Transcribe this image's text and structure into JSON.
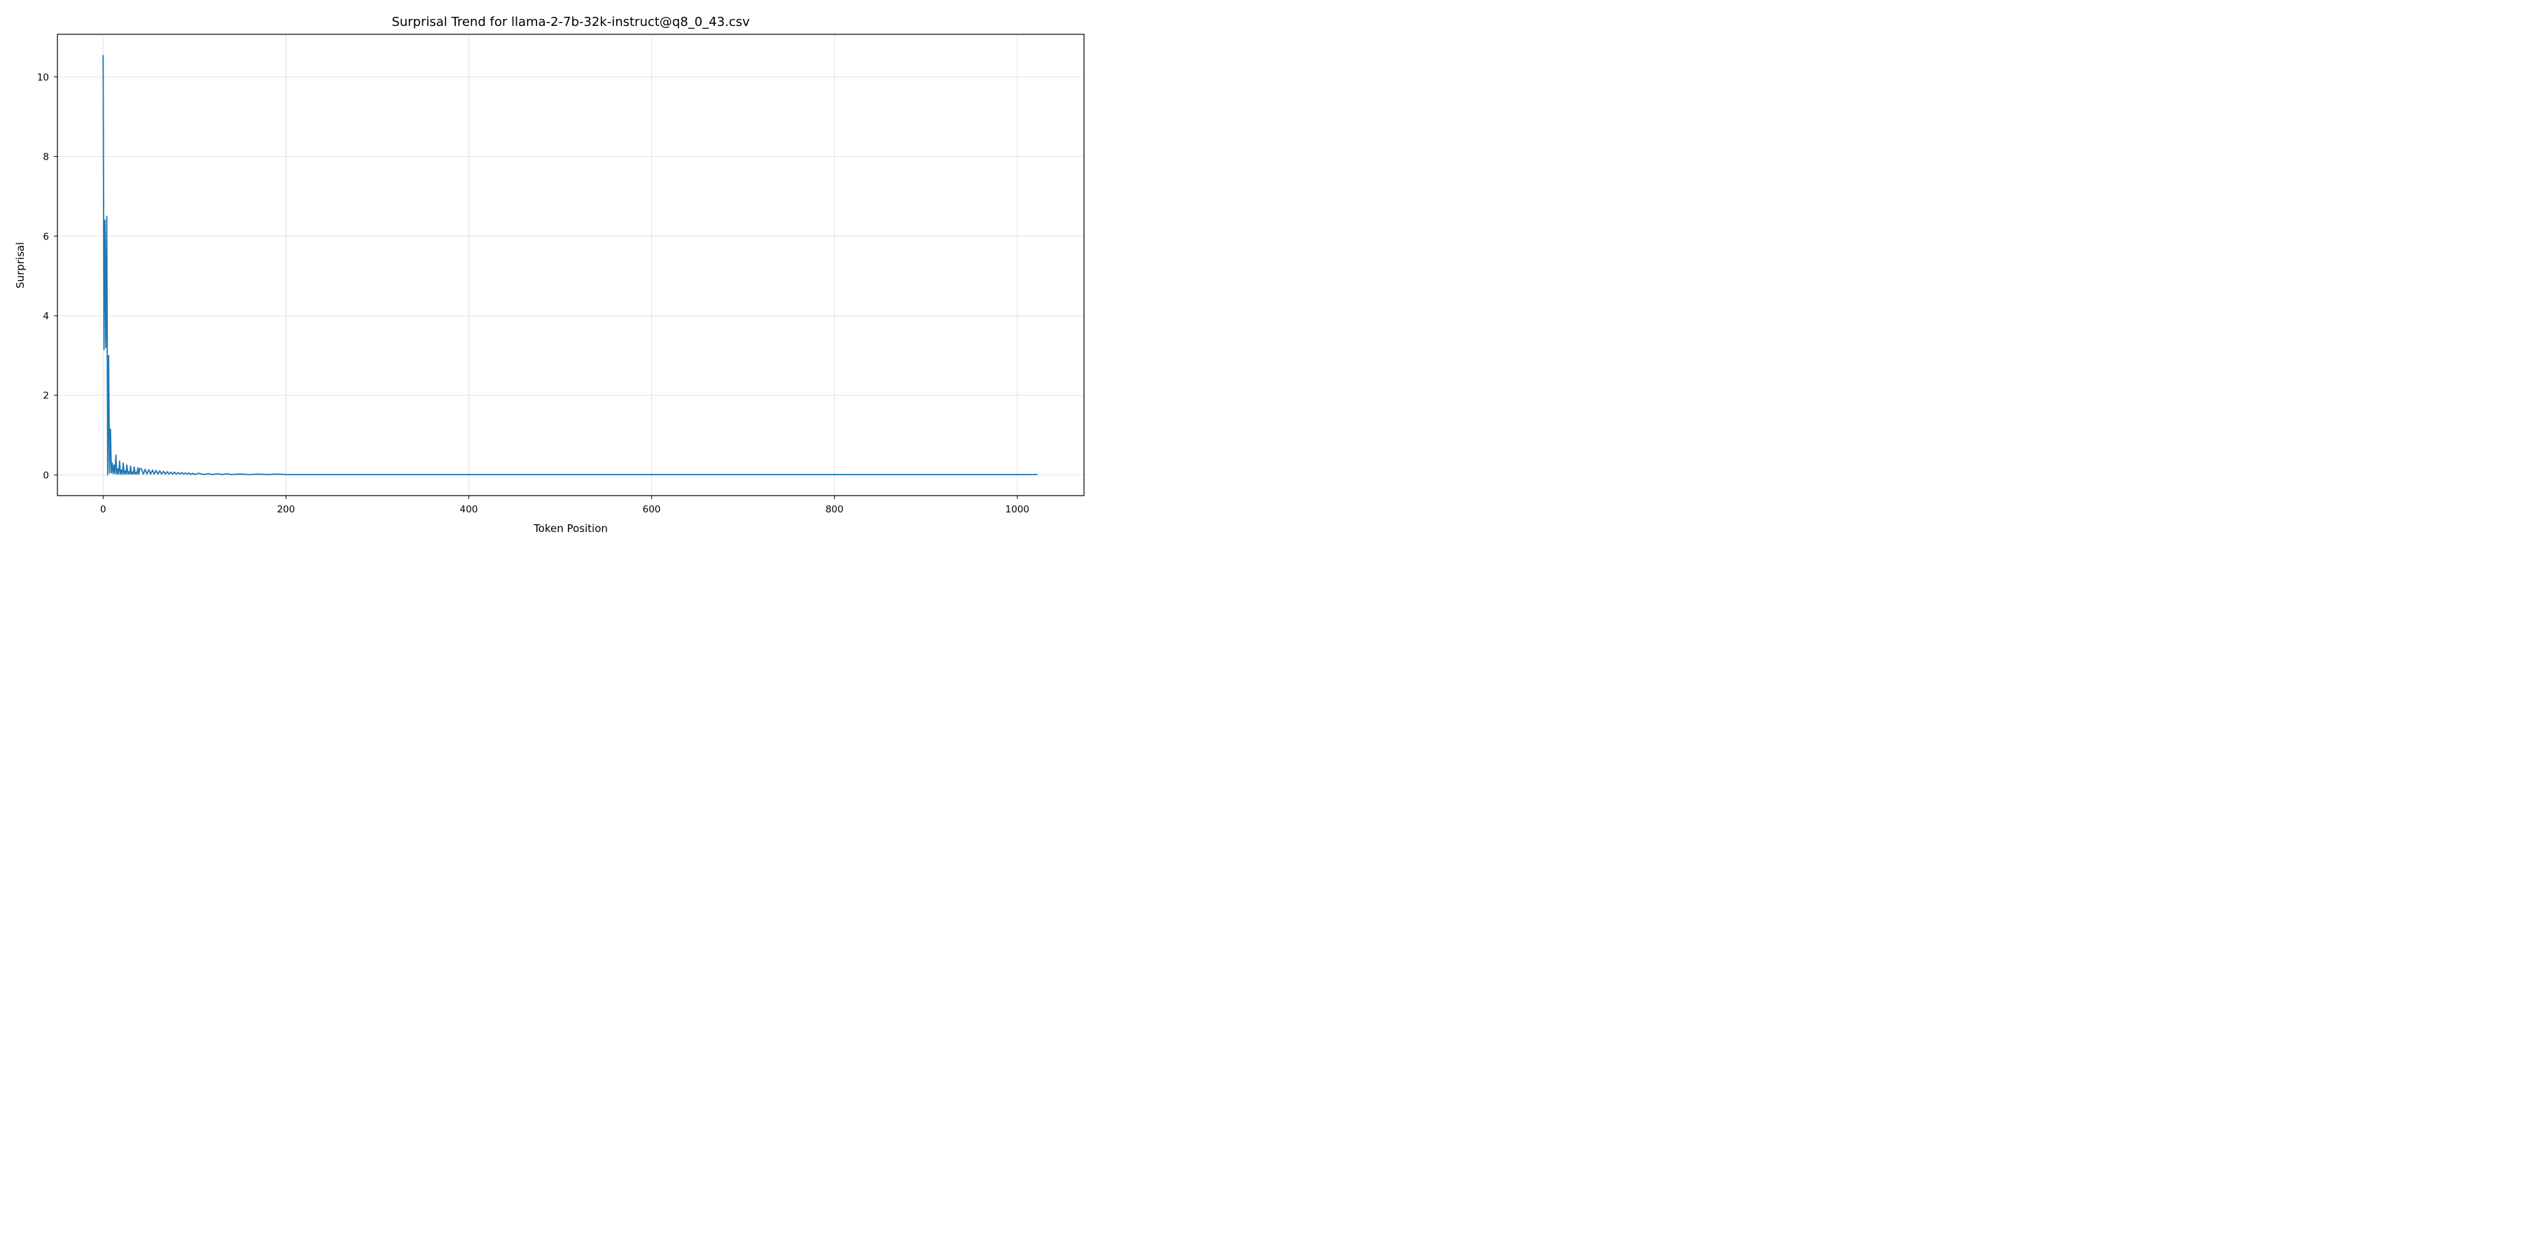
{
  "chart_data": {
    "type": "line",
    "title": "Surprisal Trend for llama-2-7b-32k-instruct@q8_0_43.csv",
    "xlabel": "Token Position",
    "ylabel": "Surprisal",
    "xlim": [
      -50,
      1073
    ],
    "ylim": [
      -0.52,
      11.07
    ],
    "xticks": [
      0,
      200,
      400,
      600,
      800,
      1000
    ],
    "yticks": [
      0,
      2,
      4,
      6,
      8,
      10
    ],
    "grid": true,
    "series_color": "#1f77b4",
    "series": [
      {
        "x": [
          0,
          1,
          2,
          3,
          4,
          5,
          6,
          7,
          8,
          9,
          10,
          11,
          12,
          13,
          14,
          15,
          16,
          17,
          18,
          19,
          20,
          21,
          22,
          23,
          24,
          25,
          26,
          27,
          28,
          29,
          30,
          31,
          32,
          33,
          34,
          35,
          36,
          37,
          38,
          39,
          40,
          42,
          44,
          46,
          48,
          50,
          52,
          54,
          56,
          58,
          60,
          62,
          64,
          66,
          68,
          70,
          72,
          74,
          76,
          78,
          80,
          82,
          84,
          86,
          88,
          90,
          92,
          94,
          96,
          98,
          100,
          105,
          110,
          115,
          120,
          125,
          130,
          135,
          140,
          150,
          160,
          170,
          180,
          190,
          200,
          250,
          300,
          400,
          500,
          600,
          700,
          800,
          900,
          1000,
          1022
        ],
        "values": [
          10.55,
          3.15,
          6.4,
          3.2,
          6.5,
          0.0,
          3.0,
          0.05,
          1.15,
          0.05,
          0.3,
          0.03,
          0.25,
          0.03,
          0.5,
          0.02,
          0.15,
          0.02,
          0.35,
          0.02,
          0.12,
          0.02,
          0.3,
          0.02,
          0.1,
          0.02,
          0.25,
          0.02,
          0.08,
          0.02,
          0.22,
          0.02,
          0.07,
          0.02,
          0.2,
          0.02,
          0.06,
          0.02,
          0.18,
          0.02,
          0.16,
          0.15,
          0.02,
          0.14,
          0.02,
          0.13,
          0.02,
          0.12,
          0.02,
          0.11,
          0.02,
          0.1,
          0.02,
          0.09,
          0.02,
          0.08,
          0.02,
          0.07,
          0.02,
          0.07,
          0.02,
          0.06,
          0.02,
          0.06,
          0.02,
          0.05,
          0.02,
          0.05,
          0.01,
          0.04,
          0.01,
          0.04,
          0.01,
          0.03,
          0.01,
          0.03,
          0.01,
          0.03,
          0.01,
          0.02,
          0.01,
          0.02,
          0.01,
          0.02,
          0.01,
          0.01,
          0.01,
          0.01,
          0.01,
          0.01,
          0.01,
          0.01,
          0.01,
          0.01,
          0.01
        ]
      }
    ]
  }
}
